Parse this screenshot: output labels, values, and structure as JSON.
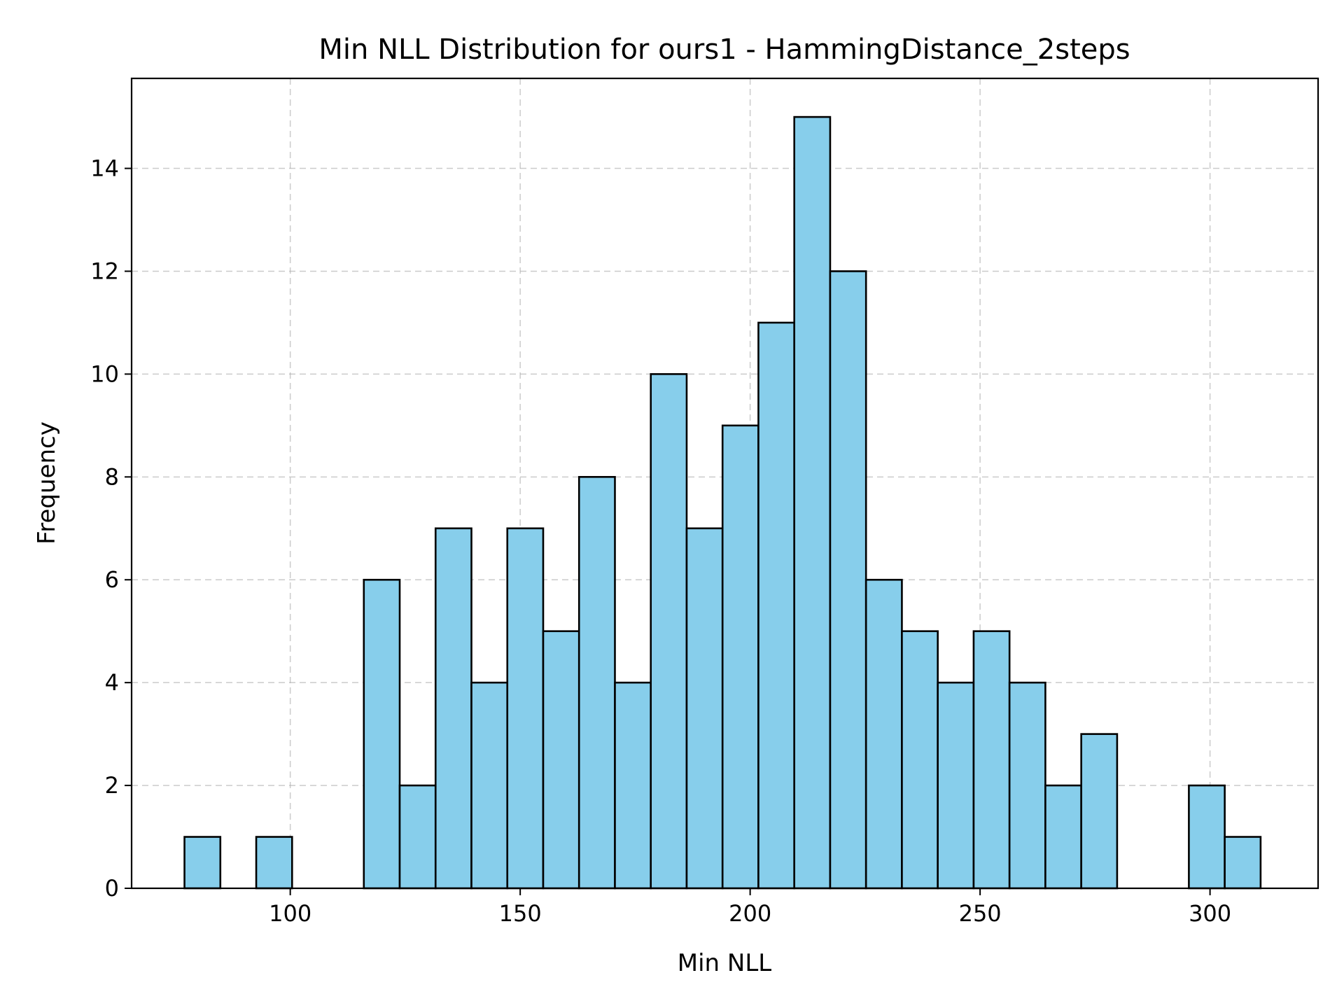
{
  "chart_data": {
    "type": "bar",
    "title": "Min NLL Distribution for ours1 - HammingDistance_2steps",
    "xlabel": "Min NLL",
    "ylabel": "Frequency",
    "xlim": [
      65.5,
      323.5
    ],
    "ylim": [
      0,
      15.75
    ],
    "bin_edges": [
      77.0,
      84.8,
      92.6,
      100.4,
      108.2,
      116.0,
      123.8,
      131.6,
      139.4,
      147.2,
      155.0,
      162.8,
      170.6,
      178.4,
      186.2,
      194.0,
      201.8,
      209.6,
      217.4,
      225.2,
      233.0,
      240.8,
      248.6,
      256.4,
      264.2,
      272.0,
      279.8,
      287.6,
      295.4,
      303.2,
      311.0
    ],
    "values": [
      1,
      0,
      1,
      0,
      0,
      6,
      2,
      7,
      4,
      7,
      5,
      8,
      4,
      10,
      7,
      9,
      11,
      15,
      12,
      6,
      5,
      4,
      5,
      4,
      2,
      3,
      0,
      0,
      2,
      1
    ],
    "x_ticks": [
      100,
      150,
      200,
      250,
      300
    ],
    "y_ticks": [
      0,
      2,
      4,
      6,
      8,
      10,
      12,
      14
    ],
    "grid": true,
    "bar_color": "#87ceeb",
    "edge_color": "#000000"
  }
}
